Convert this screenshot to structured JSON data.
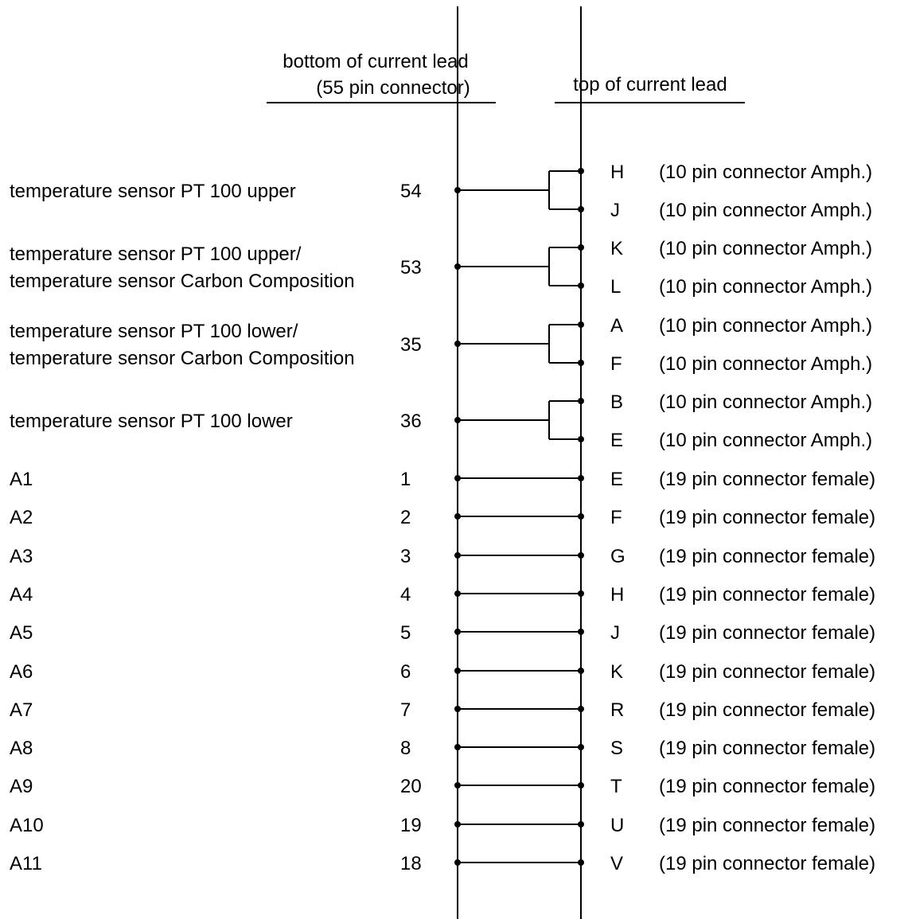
{
  "headers": {
    "bottom_line1": "bottom of current lead",
    "bottom_line2": "(55 pin connector)",
    "top": "top of current lead"
  },
  "sensor_groups": [
    {
      "label_lines": [
        "temperature sensor PT 100 upper"
      ],
      "pin": "54",
      "top_pins": [
        {
          "letter": "H",
          "desc": "(10 pin connector Amph.)"
        },
        {
          "letter": "J",
          "desc": "(10 pin connector Amph.)"
        }
      ]
    },
    {
      "label_lines": [
        "temperature sensor PT 100 upper/",
        "temperature sensor Carbon Composition"
      ],
      "pin": "53",
      "top_pins": [
        {
          "letter": "K",
          "desc": "(10 pin connector Amph.)"
        },
        {
          "letter": "L",
          "desc": "(10 pin connector Amph.)"
        }
      ]
    },
    {
      "label_lines": [
        "temperature sensor PT 100 lower/",
        "temperature sensor Carbon Composition"
      ],
      "pin": "35",
      "top_pins": [
        {
          "letter": "A",
          "desc": "(10 pin connector Amph.)"
        },
        {
          "letter": "F",
          "desc": "(10 pin connector Amph.)"
        }
      ]
    },
    {
      "label_lines": [
        "temperature sensor PT 100 lower"
      ],
      "pin": "36",
      "top_pins": [
        {
          "letter": "B",
          "desc": "(10 pin connector Amph.)"
        },
        {
          "letter": "E",
          "desc": "(10 pin connector Amph.)"
        }
      ]
    }
  ],
  "wires": [
    {
      "label": "A1",
      "pin": "1",
      "letter": "E",
      "desc": "(19 pin connector female)"
    },
    {
      "label": "A2",
      "pin": "2",
      "letter": "F",
      "desc": "(19 pin connector female)"
    },
    {
      "label": "A3",
      "pin": "3",
      "letter": "G",
      "desc": "(19 pin connector female)"
    },
    {
      "label": "A4",
      "pin": "4",
      "letter": "H",
      "desc": "(19 pin connector female)"
    },
    {
      "label": "A5",
      "pin": "5",
      "letter": "J",
      "desc": "(19 pin connector female)"
    },
    {
      "label": "A6",
      "pin": "6",
      "letter": "K",
      "desc": "(19 pin connector female)"
    },
    {
      "label": "A7",
      "pin": "7",
      "letter": "R",
      "desc": "(19 pin connector female)"
    },
    {
      "label": "A8",
      "pin": "8",
      "letter": "S",
      "desc": "(19 pin connector female)"
    },
    {
      "label": "A9",
      "pin": "20",
      "letter": "T",
      "desc": "(19 pin connector female)"
    },
    {
      "label": "A10",
      "pin": "19",
      "letter": "U",
      "desc": "(19 pin connector female)"
    },
    {
      "label": "A11",
      "pin": "18",
      "letter": "V",
      "desc": "(19 pin connector female)"
    }
  ]
}
